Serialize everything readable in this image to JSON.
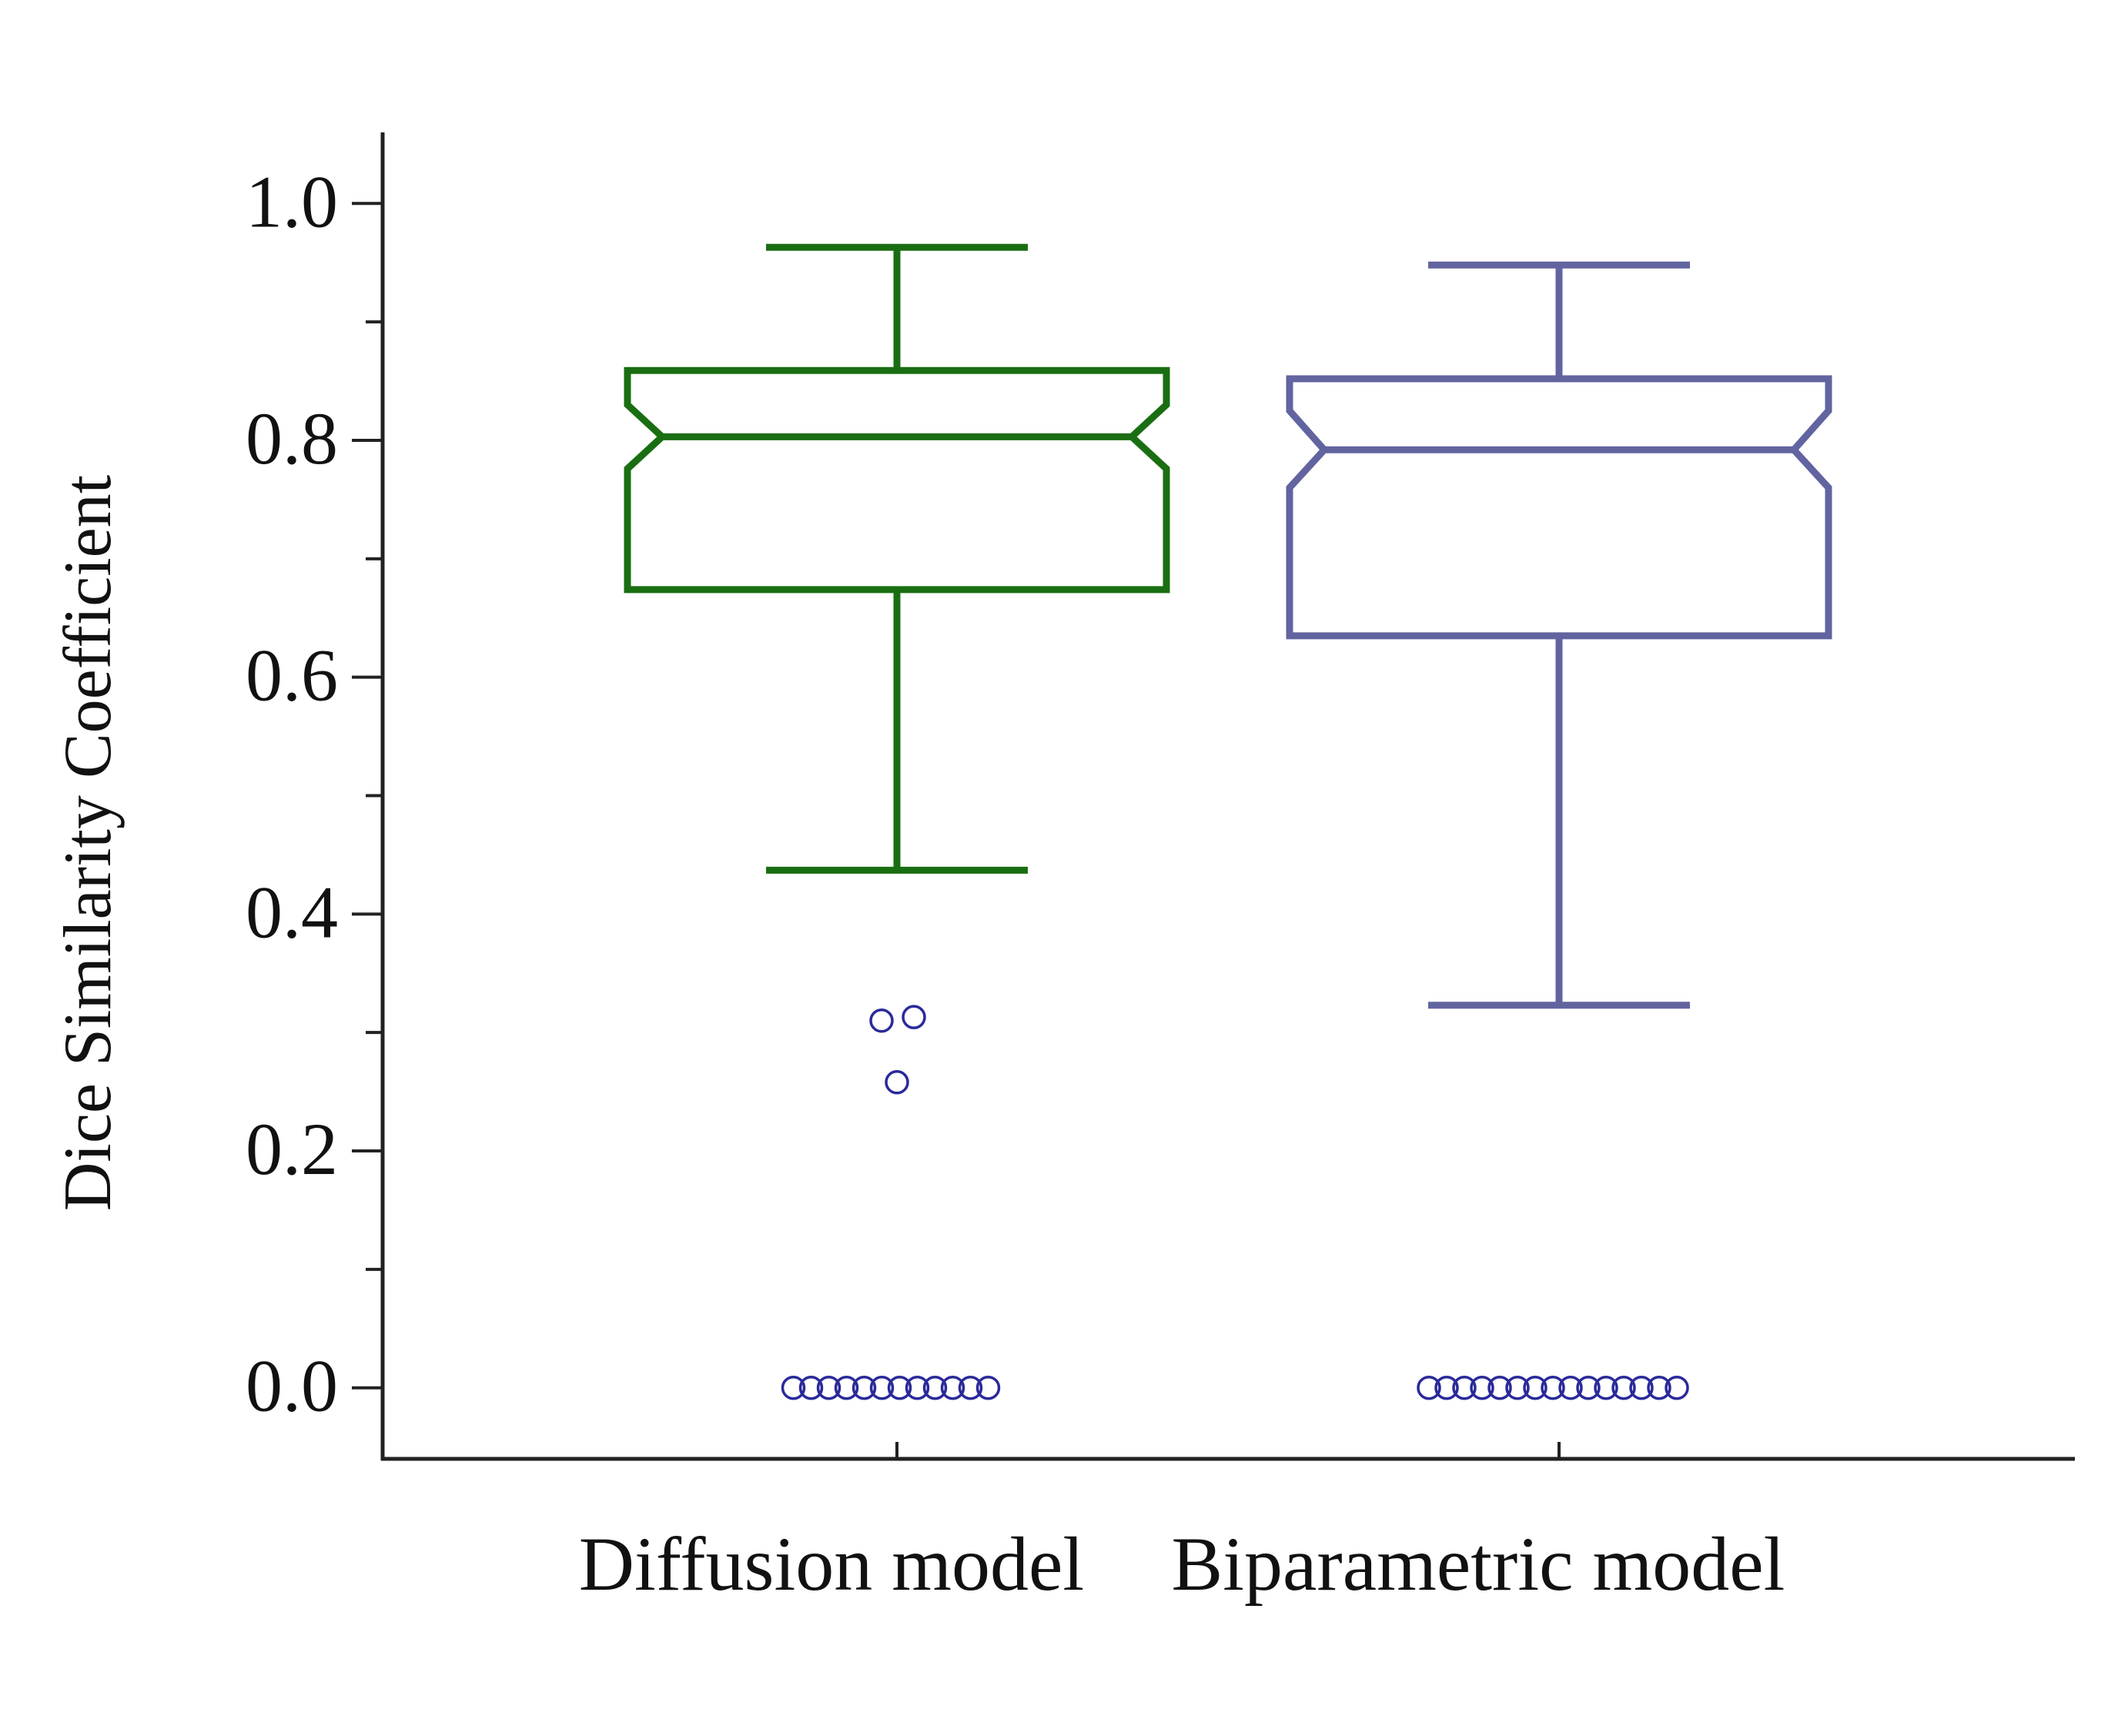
{
  "chart_data": {
    "type": "box",
    "title": "",
    "xlabel": "",
    "ylabel": "Dice Similarity Coefficient",
    "ylim": [
      -0.06,
      1.06
    ],
    "yticks": [
      0.0,
      0.2,
      0.4,
      0.6,
      0.8,
      1.0
    ],
    "ytick_labels": [
      "0.0",
      "0.2",
      "0.4",
      "0.6",
      "0.8",
      "1.0"
    ],
    "minor_yticks": [
      0.1,
      0.3,
      0.5,
      0.7,
      0.9
    ],
    "grid": false,
    "notched": true,
    "categories": [
      "Diffusion model",
      "Biparametric model"
    ],
    "boxes": [
      {
        "name": "Diffusion model",
        "color": "#1a6e12",
        "whisker_low": 0.437,
        "q1": 0.674,
        "notch_low": 0.776,
        "median": 0.803,
        "notch_high": 0.83,
        "q3": 0.859,
        "whisker_high": 0.963,
        "outliers": [
          {
            "y": 0.31,
            "count": 1
          },
          {
            "y": 0.313,
            "count": 1
          },
          {
            "y": 0.258,
            "count": 1
          },
          {
            "y": 0.0,
            "count": 12
          }
        ]
      },
      {
        "name": "Biparametric model",
        "color": "#6264a0",
        "whisker_low": 0.323,
        "q1": 0.635,
        "notch_low": 0.76,
        "median": 0.792,
        "notch_high": 0.825,
        "q3": 0.852,
        "whisker_high": 0.948,
        "outliers": [
          {
            "y": 0.0,
            "count": 15
          }
        ]
      }
    ],
    "outlier_color": "#2a2a9a",
    "axis_color": "#222222"
  }
}
